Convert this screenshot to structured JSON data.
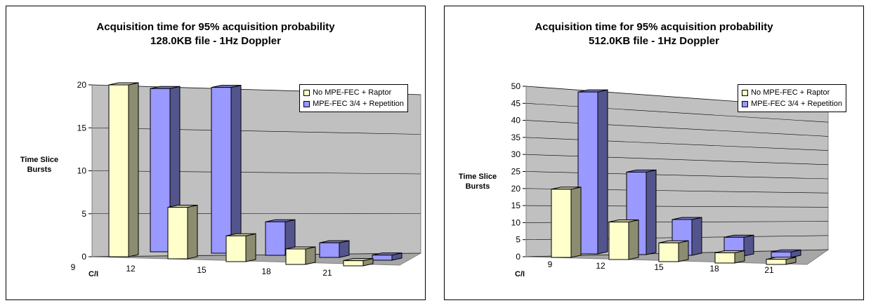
{
  "chart_data": [
    {
      "type": "bar",
      "title": [
        "Acquisition time for 95% acquisition probability",
        "128.0KB file - 1Hz Doppler"
      ],
      "ylabel": [
        "Time Slice",
        "Bursts"
      ],
      "xlabel": "C/I",
      "categories": [
        "9",
        "12",
        "15",
        "18",
        "21"
      ],
      "ylim": [
        0,
        20
      ],
      "yticks": [
        "0",
        "5",
        "10",
        "15",
        "20"
      ],
      "grid": true,
      "legend_position": "top-right",
      "series": [
        {
          "name": "No MPE-FEC + Raptor",
          "color": "#ffffcc",
          "values": [
            20,
            6,
            3,
            1.8,
            0.6
          ]
        },
        {
          "name": "MPE-FEC 3/4 + Repetition",
          "color": "#9999ff",
          "values": [
            19,
            19.3,
            3.9,
            1.7,
            0.6
          ]
        }
      ]
    },
    {
      "type": "bar",
      "title": [
        "Acquisition time for 95% acquisition probability",
        "512.0KB file - 1Hz Doppler"
      ],
      "ylabel": [
        "Time Slice",
        "Bursts"
      ],
      "xlabel": "C/I",
      "categories": [
        "9",
        "12",
        "15",
        "18",
        "21"
      ],
      "ylim": [
        0,
        50
      ],
      "yticks": [
        "0",
        "5",
        "10",
        "15",
        "20",
        "25",
        "30",
        "35",
        "40",
        "45",
        "50"
      ],
      "grid": true,
      "legend_position": "top-right",
      "series": [
        {
          "name": "No MPE-FEC + Raptor",
          "color": "#ffffcc",
          "values": [
            20,
            11,
            5.5,
            3,
            1.5
          ]
        },
        {
          "name": "MPE-FEC 3/4 + Repetition",
          "color": "#9999ff",
          "values": [
            47.5,
            24.2,
            10.5,
            5.5,
            1.6
          ]
        }
      ]
    }
  ]
}
